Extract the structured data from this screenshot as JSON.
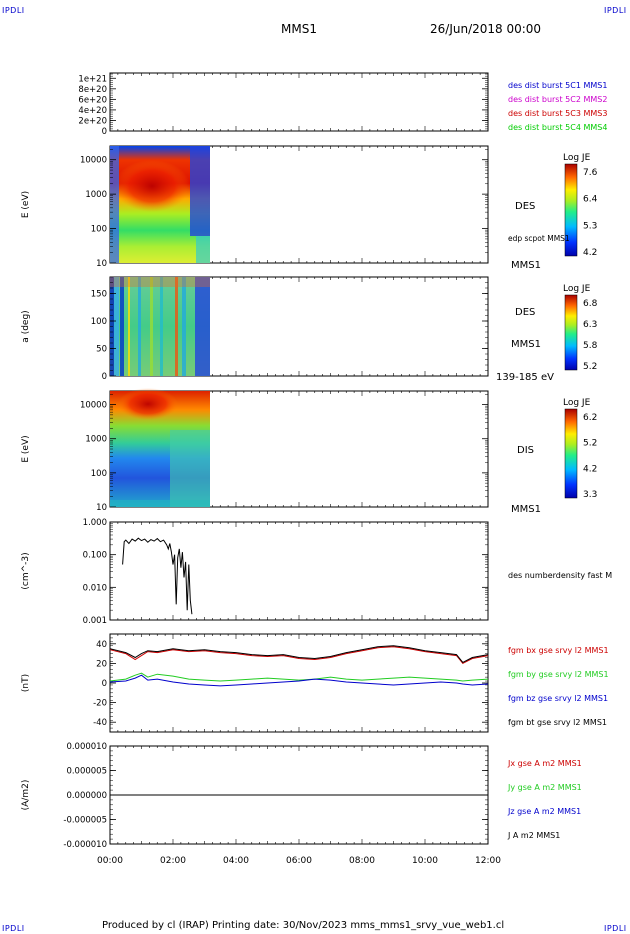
{
  "header": {
    "corner_tl": "IPDLI",
    "corner_tr": "IPDLI",
    "corner_bl": "IPDLI",
    "corner_br": "IPDLI",
    "mission": "MMS1",
    "date": "26/Jun/2018 00:00"
  },
  "footer": {
    "text": "Produced by cl (IRAP)   Printing date: 30/Nov/2023   mms_mms1_srvy_vue_web1.cl"
  },
  "colors": {
    "mms1": "#0000cc",
    "mms2": "#cc00cc",
    "mms3": "#cc0000",
    "mms4": "#00cc00",
    "bx": "#cc0000",
    "by": "#22cc22",
    "bz": "#0000cc",
    "bt": "#000000"
  },
  "chart_data": [
    {
      "type": "line",
      "id": "panel1",
      "yticks": [
        "1e+21",
        "8e+20",
        "6e+20",
        "4e+20",
        "2e+20",
        "0"
      ],
      "ytick_values": [
        1e+21,
        8e+20,
        6e+20,
        4e+20,
        2e+20,
        0
      ],
      "ylim": [
        0,
        1.1e+21
      ],
      "series": [
        {
          "name": "des dist burst 5C1 MMS1",
          "values": []
        },
        {
          "name": "des dist burst 5C2 MMS2",
          "values": []
        },
        {
          "name": "des dist burst 5C3 MMS3",
          "values": []
        },
        {
          "name": "des dist burst 5C4 MMS4",
          "values": []
        }
      ]
    },
    {
      "type": "heatmap",
      "id": "panel2",
      "ylabel": "E (eV)",
      "yscale": "log",
      "yticks": [
        "10000",
        "1000",
        "100",
        "10"
      ],
      "ytick_values": [
        10000,
        1000,
        100,
        10
      ],
      "ylim": [
        10,
        25000
      ],
      "label": "DES",
      "right_labels": [
        "edp scpot MMS1",
        "MMS1"
      ],
      "colorbar_title": "Log JE",
      "colorbar_ticks": [
        "7.6",
        "6.4",
        "5.3",
        "4.2"
      ],
      "data_x_range": [
        "00:00",
        "03:10"
      ]
    },
    {
      "type": "heatmap",
      "id": "panel3",
      "ylabel": "a (deg)",
      "yticks": [
        "150",
        "100",
        "50",
        "0"
      ],
      "ytick_values": [
        150,
        100,
        50,
        0
      ],
      "ylim": [
        0,
        180
      ],
      "label": "DES",
      "right_labels": [
        "MMS1",
        "139-185 eV"
      ],
      "colorbar_title": "Log JE",
      "colorbar_ticks": [
        "6.8",
        "6.3",
        "5.8",
        "5.2"
      ],
      "data_x_range": [
        "00:00",
        "03:10"
      ]
    },
    {
      "type": "heatmap",
      "id": "panel4",
      "ylabel": "E (eV)",
      "yscale": "log",
      "yticks": [
        "10000",
        "1000",
        "100",
        "10"
      ],
      "ytick_values": [
        10000,
        1000,
        100,
        10
      ],
      "ylim": [
        10,
        25000
      ],
      "label": "DIS",
      "right_labels": [
        "MMS1"
      ],
      "colorbar_title": "Log JE",
      "colorbar_ticks": [
        "6.2",
        "5.2",
        "4.2",
        "3.3"
      ],
      "data_x_range": [
        "00:00",
        "03:10"
      ]
    },
    {
      "type": "line",
      "id": "panel5",
      "ylabel": "(cm^-3)",
      "yscale": "log",
      "yticks": [
        "1.000",
        "0.100",
        "0.010",
        "0.001"
      ],
      "ytick_values": [
        1,
        0.1,
        0.01,
        0.001
      ],
      "ylim": [
        0.001,
        1
      ],
      "series": [
        {
          "name": "des numberdensity fast M",
          "x": [
            0.4,
            0.45,
            0.5,
            0.6,
            0.7,
            0.8,
            0.9,
            1.0,
            1.1,
            1.2,
            1.3,
            1.4,
            1.5,
            1.6,
            1.7,
            1.8,
            1.85,
            1.9,
            1.95,
            2.0,
            2.05,
            2.1,
            2.15,
            2.2,
            2.25,
            2.3,
            2.35,
            2.4,
            2.45,
            2.5,
            2.55,
            2.6
          ],
          "values": [
            0.05,
            0.25,
            0.28,
            0.22,
            0.3,
            0.26,
            0.32,
            0.27,
            0.3,
            0.24,
            0.29,
            0.26,
            0.31,
            0.25,
            0.28,
            0.2,
            0.15,
            0.22,
            0.12,
            0.05,
            0.1,
            0.003,
            0.08,
            0.15,
            0.04,
            0.12,
            0.02,
            0.06,
            0.002,
            0.05,
            0.004,
            0.0015
          ]
        }
      ]
    },
    {
      "type": "line",
      "id": "panel6",
      "ylabel": "(nT)",
      "yticks": [
        "40",
        "20",
        "0",
        "-20",
        "-40"
      ],
      "ytick_values": [
        40,
        20,
        0,
        -20,
        -40
      ],
      "ylim": [
        -50,
        50
      ],
      "x": [
        0,
        0.5,
        0.8,
        1.0,
        1.2,
        1.5,
        2.0,
        2.5,
        3.0,
        3.5,
        4.0,
        4.5,
        5.0,
        5.5,
        6.0,
        6.5,
        7.0,
        7.5,
        8.0,
        8.5,
        9.0,
        9.5,
        10.0,
        10.5,
        11.0,
        11.2,
        11.5,
        12.0
      ],
      "series": [
        {
          "name": "fgm bx gse srvy l2 MMS1",
          "color_key": "bx",
          "values": [
            34,
            30,
            24,
            28,
            32,
            31,
            34,
            32,
            33,
            31,
            30,
            28,
            27,
            28,
            25,
            24,
            26,
            30,
            33,
            36,
            37,
            35,
            32,
            30,
            28,
            20,
            25,
            28
          ]
        },
        {
          "name": "fgm by gse srvy l2 MMS1",
          "color_key": "by",
          "values": [
            2,
            4,
            8,
            10,
            6,
            9,
            7,
            4,
            3,
            2,
            3,
            4,
            5,
            4,
            3,
            4,
            6,
            4,
            3,
            4,
            5,
            6,
            5,
            4,
            3,
            2,
            3,
            4
          ]
        },
        {
          "name": "fgm bz gse srvy l2 MMS1",
          "color_key": "bz",
          "values": [
            1,
            2,
            5,
            8,
            3,
            4,
            1,
            -1,
            -2,
            -3,
            -2,
            -1,
            0,
            1,
            2,
            4,
            3,
            1,
            0,
            -1,
            -2,
            -1,
            0,
            1,
            0,
            -1,
            -2,
            -1
          ]
        },
        {
          "name": "fgm bt gse srvy l2 MMS1",
          "color_key": "bt",
          "values": [
            35,
            31,
            26,
            30,
            33,
            32,
            35,
            33,
            34,
            32,
            31,
            29,
            28,
            29,
            26,
            25,
            27,
            31,
            34,
            37,
            38,
            36,
            33,
            31,
            29,
            21,
            26,
            29
          ]
        }
      ]
    },
    {
      "type": "line",
      "id": "panel7",
      "ylabel": "(A/m2)",
      "yticks": [
        "0.000010",
        "0.000005",
        "0.000000",
        "-0.000005",
        "-0.000010"
      ],
      "ytick_values": [
        1e-05,
        5e-06,
        0,
        -5e-06,
        -1e-05
      ],
      "ylim": [
        -1e-05,
        1e-05
      ],
      "xticks": [
        "00:00",
        "02:00",
        "04:00",
        "06:00",
        "08:00",
        "10:00",
        "12:00"
      ],
      "series": [
        {
          "name": "Jx gse A m2 MMS1",
          "color_key": "bx",
          "values": []
        },
        {
          "name": "Jy gse A m2 MMS1",
          "color_key": "by",
          "values": []
        },
        {
          "name": "Jz gse A m2 MMS1",
          "color_key": "bz",
          "values": []
        },
        {
          "name": "J A m2 MMS1",
          "color_key": "bt",
          "values": [
            0,
            0,
            0,
            0,
            0,
            0,
            0
          ]
        }
      ]
    }
  ]
}
